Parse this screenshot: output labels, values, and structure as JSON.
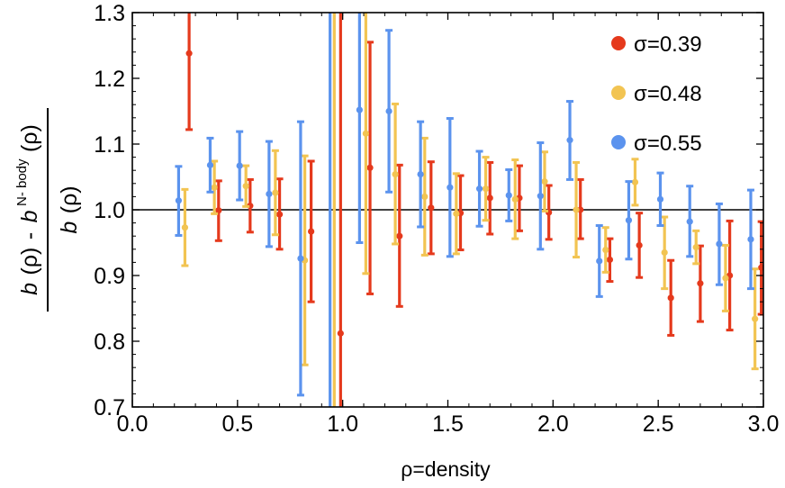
{
  "chart_data": {
    "type": "scatter",
    "title": "",
    "xlabel": "ρ=density",
    "ylabel": {
      "num_b": "b",
      "num_rho1": "(ρ)",
      "num_minus": "-",
      "num_b2": "b",
      "num_sup": "N- body",
      "num_rho2": "(ρ)",
      "den_b": "b",
      "den_rho": "(ρ)"
    },
    "xlim": [
      0.0,
      3.0
    ],
    "ylim": [
      0.7,
      1.3
    ],
    "xticks": [
      0.0,
      0.5,
      1.0,
      1.5,
      2.0,
      2.5,
      3.0
    ],
    "xtick_labels": [
      "0.0",
      "0.5",
      "1.0",
      "1.5",
      "2.0",
      "2.5",
      "3.0"
    ],
    "yticks": [
      0.7,
      0.8,
      0.9,
      1.0,
      1.1,
      1.2,
      1.3
    ],
    "ytick_labels": [
      "0.7",
      "0.8",
      "0.9",
      "1.0",
      "1.1",
      "1.2",
      "1.3"
    ],
    "reference_line": 1.0,
    "legend_position": "top-right",
    "series": [
      {
        "name": "σ=0.39",
        "color": "#e5391c",
        "points": [
          {
            "x": 0.27,
            "y": 1.238,
            "lo": 1.122,
            "hi": 1.3
          },
          {
            "x": 0.41,
            "y": 0.999,
            "lo": 0.953,
            "hi": 1.044
          },
          {
            "x": 0.56,
            "y": 1.006,
            "lo": 0.966,
            "hi": 1.046
          },
          {
            "x": 0.7,
            "y": 0.993,
            "lo": 0.94,
            "hi": 1.047
          },
          {
            "x": 0.85,
            "y": 0.967,
            "lo": 0.86,
            "hi": 1.074
          },
          {
            "x": 0.99,
            "y": 0.812,
            "lo": 0.7,
            "hi": 1.3
          },
          {
            "x": 1.13,
            "y": 1.064,
            "lo": 0.872,
            "hi": 1.255
          },
          {
            "x": 1.27,
            "y": 0.96,
            "lo": 0.853,
            "hi": 1.068
          },
          {
            "x": 1.42,
            "y": 1.003,
            "lo": 0.933,
            "hi": 1.073
          },
          {
            "x": 1.56,
            "y": 0.995,
            "lo": 0.939,
            "hi": 1.052
          },
          {
            "x": 1.7,
            "y": 1.018,
            "lo": 0.963,
            "hi": 1.072
          },
          {
            "x": 1.84,
            "y": 1.018,
            "lo": 0.968,
            "hi": 1.067
          },
          {
            "x": 1.98,
            "y": 0.996,
            "lo": 0.955,
            "hi": 1.037
          },
          {
            "x": 2.13,
            "y": 1.0,
            "lo": 0.956,
            "hi": 1.046
          },
          {
            "x": 2.27,
            "y": 0.924,
            "lo": 0.891,
            "hi": 0.956
          },
          {
            "x": 2.41,
            "y": 0.946,
            "lo": 0.897,
            "hi": 0.995
          },
          {
            "x": 2.56,
            "y": 0.866,
            "lo": 0.809,
            "hi": 0.923
          },
          {
            "x": 2.7,
            "y": 0.888,
            "lo": 0.83,
            "hi": 0.945
          },
          {
            "x": 2.84,
            "y": 0.9,
            "lo": 0.817,
            "hi": 0.983
          },
          {
            "x": 2.99,
            "y": 0.912,
            "lo": 0.841,
            "hi": 0.982
          }
        ]
      },
      {
        "name": "σ=0.48",
        "color": "#f2c452",
        "points": [
          {
            "x": 0.25,
            "y": 0.973,
            "lo": 0.915,
            "hi": 1.031
          },
          {
            "x": 0.39,
            "y": 1.034,
            "lo": 0.994,
            "hi": 1.074
          },
          {
            "x": 0.54,
            "y": 1.036,
            "lo": 1.005,
            "hi": 1.067
          },
          {
            "x": 0.68,
            "y": 1.026,
            "lo": 0.962,
            "hi": 1.09
          },
          {
            "x": 0.82,
            "y": 0.923,
            "lo": 0.764,
            "hi": 1.082
          },
          {
            "x": 0.96,
            "y": 1.0,
            "lo": 0.7,
            "hi": 1.3
          },
          {
            "x": 1.11,
            "y": 1.116,
            "lo": 0.903,
            "hi": 1.3
          },
          {
            "x": 1.25,
            "y": 1.054,
            "lo": 0.948,
            "hi": 1.161
          },
          {
            "x": 1.39,
            "y": 1.02,
            "lo": 0.931,
            "hi": 1.109
          },
          {
            "x": 1.54,
            "y": 0.994,
            "lo": 0.933,
            "hi": 1.055
          },
          {
            "x": 1.68,
            "y": 1.032,
            "lo": 0.984,
            "hi": 1.08
          },
          {
            "x": 1.82,
            "y": 1.016,
            "lo": 0.956,
            "hi": 1.076
          },
          {
            "x": 1.96,
            "y": 1.043,
            "lo": 0.998,
            "hi": 1.088
          },
          {
            "x": 2.11,
            "y": 1.0,
            "lo": 0.928,
            "hi": 1.072
          },
          {
            "x": 2.25,
            "y": 0.939,
            "lo": 0.905,
            "hi": 0.973
          },
          {
            "x": 2.39,
            "y": 1.042,
            "lo": 1.007,
            "hi": 1.077
          },
          {
            "x": 2.53,
            "y": 0.935,
            "lo": 0.88,
            "hi": 0.989
          },
          {
            "x": 2.68,
            "y": 0.943,
            "lo": 0.918,
            "hi": 0.968
          },
          {
            "x": 2.82,
            "y": 0.896,
            "lo": 0.846,
            "hi": 0.946
          },
          {
            "x": 2.96,
            "y": 0.834,
            "lo": 0.758,
            "hi": 0.91
          }
        ]
      },
      {
        "name": "σ=0.55",
        "color": "#5b93ee",
        "points": [
          {
            "x": 0.22,
            "y": 1.014,
            "lo": 0.961,
            "hi": 1.066
          },
          {
            "x": 0.37,
            "y": 1.068,
            "lo": 1.027,
            "hi": 1.109
          },
          {
            "x": 0.51,
            "y": 1.067,
            "lo": 1.015,
            "hi": 1.119
          },
          {
            "x": 0.65,
            "y": 1.024,
            "lo": 0.944,
            "hi": 1.104
          },
          {
            "x": 0.8,
            "y": 0.926,
            "lo": 0.718,
            "hi": 1.134
          },
          {
            "x": 0.94,
            "y": 1.0,
            "lo": 0.7,
            "hi": 1.3
          },
          {
            "x": 1.08,
            "y": 1.152,
            "lo": 0.95,
            "hi": 1.3
          },
          {
            "x": 1.22,
            "y": 1.15,
            "lo": 1.027,
            "hi": 1.273
          },
          {
            "x": 1.37,
            "y": 1.054,
            "lo": 0.974,
            "hi": 1.134
          },
          {
            "x": 1.51,
            "y": 1.034,
            "lo": 0.929,
            "hi": 1.139
          },
          {
            "x": 1.65,
            "y": 1.032,
            "lo": 0.975,
            "hi": 1.089
          },
          {
            "x": 1.79,
            "y": 1.022,
            "lo": 0.983,
            "hi": 1.061
          },
          {
            "x": 1.94,
            "y": 1.021,
            "lo": 0.94,
            "hi": 1.102
          },
          {
            "x": 2.08,
            "y": 1.106,
            "lo": 1.046,
            "hi": 1.165
          },
          {
            "x": 2.22,
            "y": 0.922,
            "lo": 0.868,
            "hi": 0.976
          },
          {
            "x": 2.36,
            "y": 0.984,
            "lo": 0.925,
            "hi": 1.043
          },
          {
            "x": 2.51,
            "y": 1.016,
            "lo": 0.976,
            "hi": 1.056
          },
          {
            "x": 2.65,
            "y": 0.982,
            "lo": 0.929,
            "hi": 1.036
          },
          {
            "x": 2.79,
            "y": 0.948,
            "lo": 0.886,
            "hi": 1.009
          },
          {
            "x": 2.94,
            "y": 0.955,
            "lo": 0.88,
            "hi": 1.03
          }
        ]
      }
    ]
  }
}
